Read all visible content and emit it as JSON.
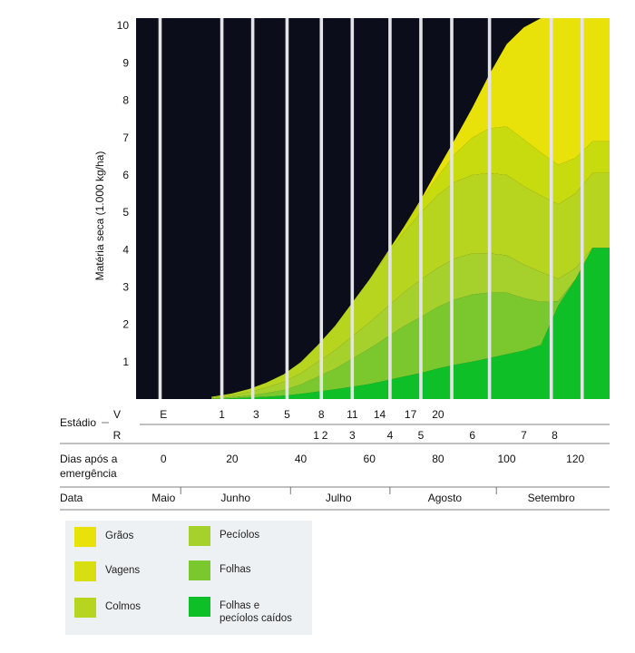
{
  "chart_data": {
    "type": "area",
    "title": "",
    "ylabel": "Matéria seca (1.000 kg/ha)",
    "xlabel": "Dias após a emergência",
    "ylim": [
      0,
      10.2
    ],
    "xlim": [
      -8,
      130
    ],
    "y_ticks": [
      1,
      2,
      3,
      4,
      5,
      6,
      7,
      8,
      9,
      10
    ],
    "x_ticks": [
      0,
      20,
      40,
      60,
      80,
      100,
      120
    ],
    "background_color": "#0b0d1a",
    "stage_lines_days": [
      -1,
      17,
      26,
      36,
      46,
      55,
      66,
      75,
      84,
      95,
      113,
      122
    ],
    "x": [
      14,
      20,
      25,
      30,
      35,
      40,
      45,
      50,
      55,
      60,
      65,
      70,
      75,
      80,
      85,
      90,
      95,
      100,
      105,
      110,
      115,
      120,
      125,
      130
    ],
    "series": [
      {
        "name": "Folhas e pecíolos caídos",
        "color": "#0fbf27",
        "values": [
          0.0,
          0.02,
          0.04,
          0.06,
          0.09,
          0.14,
          0.2,
          0.26,
          0.33,
          0.4,
          0.5,
          0.6,
          0.7,
          0.82,
          0.92,
          1.0,
          1.1,
          1.2,
          1.3,
          1.45,
          2.5,
          3.2,
          4.05,
          4.05
        ]
      },
      {
        "name": "Folhas",
        "color": "#7ac82e",
        "values": [
          0.02,
          0.03,
          0.05,
          0.1,
          0.15,
          0.25,
          0.4,
          0.55,
          0.75,
          0.95,
          1.15,
          1.35,
          1.5,
          1.65,
          1.75,
          1.8,
          1.75,
          1.65,
          1.4,
          1.15,
          0.12,
          0.0,
          0.0,
          0.0
        ]
      },
      {
        "name": "Pecíolos",
        "color": "#a6d12c",
        "values": [
          0.02,
          0.05,
          0.1,
          0.15,
          0.22,
          0.3,
          0.4,
          0.5,
          0.6,
          0.7,
          0.8,
          0.9,
          1.0,
          1.05,
          1.1,
          1.1,
          1.05,
          1.0,
          0.9,
          0.8,
          0.6,
          0.3,
          0.0,
          0.0
        ]
      },
      {
        "name": "Colmos",
        "color": "#b7d41e",
        "values": [
          0.02,
          0.05,
          0.08,
          0.13,
          0.2,
          0.3,
          0.45,
          0.65,
          0.9,
          1.15,
          1.4,
          1.6,
          1.8,
          1.95,
          2.05,
          2.1,
          2.15,
          2.15,
          2.1,
          2.05,
          2.0,
          2.0,
          2.0,
          2.0
        ]
      },
      {
        "name": "Vagens",
        "color": "#c8db0f",
        "values": [
          0.0,
          0.0,
          0.0,
          0.0,
          0.0,
          0.0,
          0.0,
          0.0,
          0.0,
          0.0,
          0.05,
          0.15,
          0.3,
          0.5,
          0.75,
          1.0,
          1.2,
          1.3,
          1.25,
          1.15,
          1.05,
          0.95,
          0.85,
          0.85
        ]
      },
      {
        "name": "Grãos",
        "color": "#e8e20a",
        "values": [
          0.0,
          0.0,
          0.0,
          0.0,
          0.0,
          0.0,
          0.0,
          0.0,
          0.0,
          0.0,
          0.0,
          0.0,
          0.05,
          0.2,
          0.4,
          0.8,
          1.45,
          2.2,
          3.0,
          3.6,
          3.93,
          3.75,
          3.3,
          3.3
        ]
      }
    ],
    "stadium_label": "Estádio",
    "v_label": "V",
    "r_label": "R",
    "v_stages": [
      {
        "label": "E",
        "day": 0
      },
      {
        "label": "1",
        "day": 17
      },
      {
        "label": "3",
        "day": 27
      },
      {
        "label": "5",
        "day": 36
      },
      {
        "label": "8",
        "day": 46
      },
      {
        "label": "11",
        "day": 55
      },
      {
        "label": "14",
        "day": 63
      },
      {
        "label": "17",
        "day": 72
      },
      {
        "label": "20",
        "day": 80
      }
    ],
    "r_stages": [
      {
        "label": "1",
        "day": 44.5
      },
      {
        "label": "2",
        "day": 47
      },
      {
        "label": "3",
        "day": 55
      },
      {
        "label": "4",
        "day": 66
      },
      {
        "label": "5",
        "day": 75
      },
      {
        "label": "6",
        "day": 90
      },
      {
        "label": "7",
        "day": 105
      },
      {
        "label": "8",
        "day": 114
      }
    ],
    "date_label": "Data",
    "months": [
      {
        "label": "Maio",
        "day": 0
      },
      {
        "label": "Junho",
        "day": 21
      },
      {
        "label": "Julho",
        "day": 51
      },
      {
        "label": "Agosto",
        "day": 82
      },
      {
        "label": "Setembro",
        "day": 113
      }
    ],
    "month_dividers_days": [
      5,
      37,
      66,
      97
    ],
    "dias_label_line1": "Dias após a",
    "dias_label_line2": "emergência",
    "legend": [
      {
        "label": "Grãos",
        "color": "#e8e20a"
      },
      {
        "label": "Vagens",
        "color": "#d7df12"
      },
      {
        "label": "Colmos",
        "color": "#b7d41e"
      },
      {
        "label": "Pecíolos",
        "color": "#a6d12c"
      },
      {
        "label": "Folhas",
        "color": "#7ac82e"
      },
      {
        "label": "Folhas e\npecíolos caídos",
        "color": "#0fbf27"
      }
    ]
  }
}
